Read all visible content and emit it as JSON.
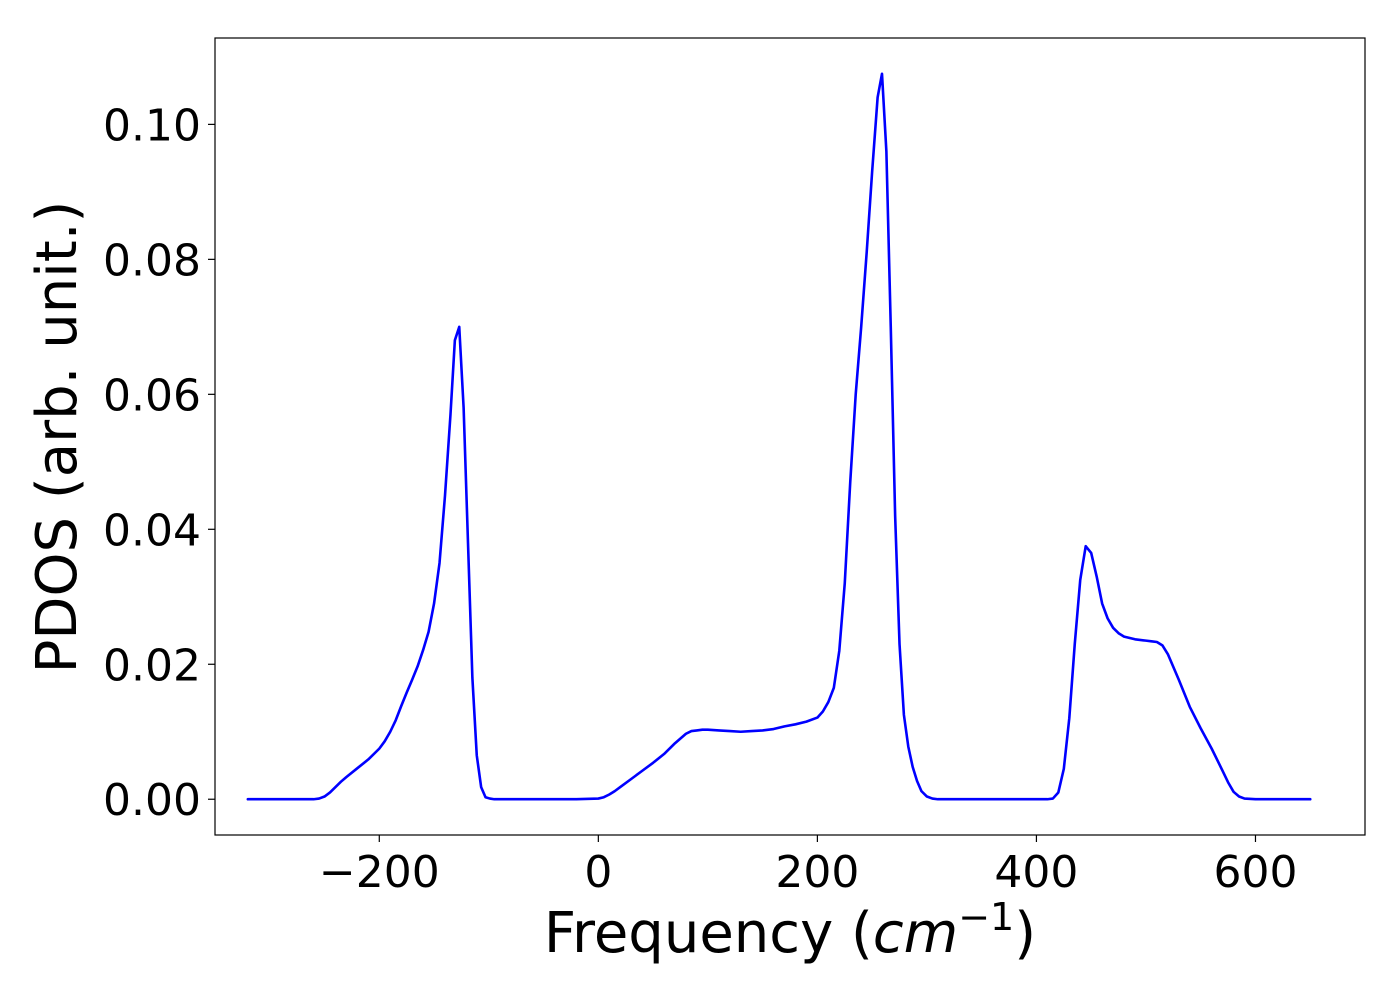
{
  "chart_data": {
    "type": "line",
    "title": "",
    "xlabel_prefix": "Frequency (",
    "xlabel_math": "cm",
    "xlabel_sup": "−1",
    "xlabel_suffix": ")",
    "ylabel": "PDOS (arb. unit.)",
    "xlim": [
      -350,
      700
    ],
    "ylim": [
      -0.0053,
      0.1128
    ],
    "xticks": [
      -200,
      0,
      200,
      400,
      600
    ],
    "xtick_labels": [
      "−200",
      "0",
      "200",
      "400",
      "600"
    ],
    "yticks": [
      0.0,
      0.02,
      0.04,
      0.06,
      0.08,
      0.1
    ],
    "ytick_labels": [
      "0.00",
      "0.02",
      "0.04",
      "0.06",
      "0.08",
      "0.10"
    ],
    "grid": false,
    "legend": "none",
    "series": [
      {
        "color": "#0000ff",
        "x": [
          -320,
          -270,
          -260,
          -255,
          -250,
          -245,
          -240,
          -235,
          -230,
          -220,
          -210,
          -200,
          -195,
          -190,
          -185,
          -180,
          -175,
          -170,
          -165,
          -160,
          -155,
          -150,
          -145,
          -140,
          -135,
          -131,
          -127,
          -123,
          -119,
          -115,
          -111,
          -107,
          -103,
          -99,
          -95,
          -90,
          -80,
          -60,
          -40,
          -20,
          0,
          5,
          10,
          15,
          20,
          30,
          40,
          50,
          60,
          70,
          80,
          85,
          90,
          95,
          100,
          110,
          120,
          130,
          140,
          150,
          160,
          170,
          180,
          190,
          200,
          205,
          210,
          215,
          220,
          225,
          230,
          235,
          240,
          245,
          250,
          255,
          259,
          263,
          267,
          271,
          275,
          279,
          283,
          287,
          291,
          295,
          300,
          305,
          310,
          315,
          320,
          340,
          380,
          410,
          415,
          420,
          425,
          430,
          435,
          440,
          445,
          450,
          455,
          460,
          465,
          470,
          475,
          480,
          490,
          500,
          505,
          510,
          515,
          520,
          530,
          540,
          550,
          560,
          570,
          575,
          580,
          585,
          590,
          600,
          620,
          650
        ],
        "y": [
          0.0,
          0.0,
          0.0,
          0.0001,
          0.0004,
          0.001,
          0.0018,
          0.0026,
          0.0033,
          0.0046,
          0.0059,
          0.0075,
          0.0086,
          0.01,
          0.0117,
          0.0138,
          0.0158,
          0.0177,
          0.0197,
          0.0221,
          0.0248,
          0.029,
          0.035,
          0.045,
          0.057,
          0.068,
          0.07,
          0.058,
          0.038,
          0.018,
          0.0065,
          0.0018,
          0.0003,
          0.0001,
          0.0,
          0.0,
          0.0,
          0.0,
          0.0,
          0.0,
          0.0001,
          0.0003,
          0.0007,
          0.0012,
          0.0018,
          0.003,
          0.0042,
          0.0054,
          0.0067,
          0.0083,
          0.0097,
          0.0101,
          0.0102,
          0.0103,
          0.0103,
          0.0102,
          0.0101,
          0.01,
          0.0101,
          0.0102,
          0.0104,
          0.0108,
          0.0111,
          0.0115,
          0.0121,
          0.013,
          0.0144,
          0.0165,
          0.022,
          0.032,
          0.047,
          0.06,
          0.07,
          0.081,
          0.093,
          0.104,
          0.1075,
          0.096,
          0.07,
          0.042,
          0.023,
          0.0125,
          0.0078,
          0.0048,
          0.0027,
          0.0012,
          0.0004,
          0.0001,
          0.0,
          0.0,
          0.0,
          0.0,
          0.0,
          0.0,
          0.0001,
          0.001,
          0.0045,
          0.012,
          0.023,
          0.0325,
          0.0375,
          0.0365,
          0.033,
          0.029,
          0.0268,
          0.0254,
          0.0246,
          0.0241,
          0.0237,
          0.0235,
          0.0234,
          0.0233,
          0.0228,
          0.0215,
          0.0177,
          0.0137,
          0.0105,
          0.0075,
          0.0042,
          0.0025,
          0.0011,
          0.0004,
          0.0001,
          0.0,
          0.0,
          0.0
        ]
      }
    ]
  }
}
